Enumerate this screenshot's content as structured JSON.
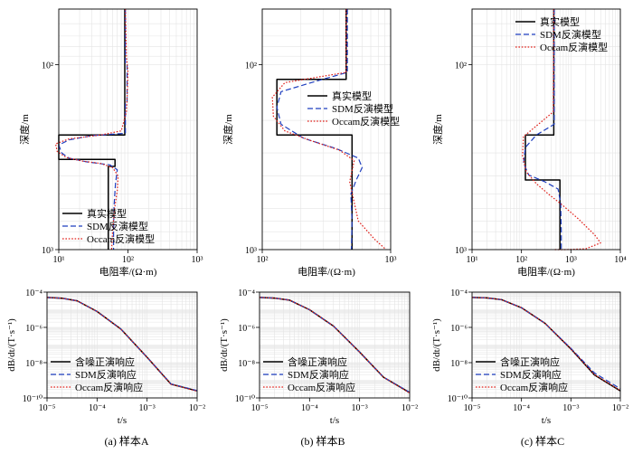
{
  "chart_data": [
    {
      "type": "line",
      "panel": "A-model",
      "xlabel": "电阻率/(Ω·m)",
      "ylabel": "深度/m",
      "xscale": "log",
      "yscale": "log",
      "y_inverted": true,
      "xlim": [
        10,
        1000
      ],
      "ylim": [
        1000,
        50
      ],
      "x_ticks": [
        "10¹",
        "10²",
        "10³"
      ],
      "y_ticks": [
        "10²",
        "10³"
      ],
      "grid": true,
      "legend": "bottom-left",
      "series": [
        {
          "name": "真实模型",
          "color": "#000000",
          "dash": "solid",
          "x": [
            90,
            90,
            10,
            10,
            65,
            65,
            52,
            52
          ],
          "y": [
            50,
            240,
            240,
            325,
            325,
            355,
            355,
            1000
          ]
        },
        {
          "name": "SDM反演模型",
          "color": "#1f3fbf",
          "dash": "dashed",
          "x": [
            92,
            92,
            97,
            97,
            92,
            92,
            30,
            14,
            10,
            11,
            14,
            25,
            55,
            70,
            66,
            63,
            62,
            62
          ],
          "y": [
            50,
            100,
            100,
            160,
            160,
            235,
            242,
            255,
            272,
            300,
            320,
            335,
            348,
            370,
            440,
            580,
            800,
            1000
          ]
        },
        {
          "name": "Occam反演模型",
          "color": "#e0201a",
          "dash": "dotted",
          "x": [
            92,
            95,
            100,
            98,
            95,
            80,
            40,
            14,
            9,
            9.5,
            13,
            22,
            40,
            60,
            72,
            70,
            64,
            60,
            58
          ],
          "y": [
            50,
            90,
            110,
            140,
            180,
            228,
            240,
            252,
            268,
            295,
            318,
            332,
            342,
            360,
            400,
            480,
            600,
            800,
            1000
          ]
        }
      ]
    },
    {
      "type": "line",
      "panel": "B-model",
      "xlabel": "电阻率/(Ω·m)",
      "ylabel": "深度/m",
      "xscale": "log",
      "yscale": "log",
      "y_inverted": true,
      "xlim": [
        100,
        1000
      ],
      "ylim": [
        1000,
        50
      ],
      "x_ticks": [
        "10²",
        "10³"
      ],
      "y_ticks": [
        "10²",
        "10³"
      ],
      "grid": true,
      "legend": "top-right",
      "series": [
        {
          "name": "真实模型",
          "color": "#000000",
          "dash": "solid",
          "x": [
            450,
            450,
            130,
            130,
            500,
            500
          ],
          "y": [
            50,
            120,
            120,
            240,
            240,
            1000
          ]
        },
        {
          "name": "SDM反演模型",
          "color": "#1f3fbf",
          "dash": "dashed",
          "x": [
            460,
            460,
            240,
            140,
            130,
            140,
            210,
            380,
            560,
            600,
            540,
            490,
            500,
            495
          ],
          "y": [
            50,
            110,
            125,
            140,
            170,
            210,
            250,
            285,
            320,
            360,
            420,
            500,
            700,
            1000
          ]
        },
        {
          "name": "Occam反演模型",
          "color": "#e0201a",
          "dash": "dotted",
          "x": [
            450,
            450,
            150,
            120,
            122,
            150,
            230,
            400,
            520,
            480,
            560,
            750,
            920
          ],
          "y": [
            50,
            110,
            125,
            150,
            190,
            228,
            255,
            290,
            330,
            430,
            700,
            880,
            1000
          ]
        }
      ]
    },
    {
      "type": "line",
      "panel": "C-model",
      "xlabel": "电阻率/(Ω·m)",
      "ylabel": "深度/m",
      "xscale": "log",
      "yscale": "log",
      "y_inverted": true,
      "xlim": [
        10,
        10000
      ],
      "ylim": [
        1000,
        50
      ],
      "x_ticks": [
        "10¹",
        "10²",
        "10³",
        "10⁴"
      ],
      "y_ticks": [
        "10²",
        "10³"
      ],
      "grid": true,
      "legend": "top-right",
      "series": [
        {
          "name": "真实模型",
          "color": "#000000",
          "dash": "solid",
          "x": [
            450,
            450,
            120,
            120,
            600,
            600
          ],
          "y": [
            50,
            240,
            240,
            420,
            420,
            1000
          ]
        },
        {
          "name": "SDM反演模型",
          "color": "#1f3fbf",
          "dash": "dashed",
          "x": [
            460,
            460,
            200,
            120,
            110,
            140,
            300,
            550,
            620,
            640,
            640
          ],
          "y": [
            50,
            210,
            240,
            280,
            340,
            395,
            430,
            470,
            560,
            800,
            1000
          ]
        },
        {
          "name": "Occam反演模型",
          "color": "#e0201a",
          "dash": "dotted",
          "x": [
            450,
            440,
            110,
            105,
            125,
            200,
            350,
            700,
            1400,
            3000,
            4000,
            2000,
            800,
            460
          ],
          "y": [
            50,
            180,
            245,
            310,
            380,
            440,
            500,
            580,
            680,
            830,
            920,
            990,
            1000,
            1000
          ]
        }
      ]
    },
    {
      "type": "line",
      "panel": "A-response",
      "xlabel": "t/s",
      "ylabel": "dB/dt/(T·s⁻¹)",
      "xscale": "log",
      "yscale": "log",
      "xlim": [
        1e-05,
        0.01
      ],
      "ylim": [
        1e-10,
        0.0001
      ],
      "x_ticks": [
        "10⁻⁵",
        "10⁻⁴",
        "10⁻³",
        "10⁻²"
      ],
      "y_ticks": [
        "10⁻⁴",
        "10⁻⁶",
        "10⁻⁸",
        "10⁻¹⁰"
      ],
      "grid": true,
      "legend": "bottom-left",
      "series": [
        {
          "name": "含噪正演响应",
          "color": "#000000",
          "dash": "solid",
          "x": [
            1e-05,
            2e-05,
            4e-05,
            0.0001,
            0.0003,
            0.001,
            0.003,
            0.01
          ],
          "y": [
            5e-05,
            4.5e-05,
            3.2e-05,
            8e-06,
            8e-07,
            2e-08,
            6e-10,
            2.5e-10
          ]
        },
        {
          "name": "SDM反演响应",
          "color": "#1f3fbf",
          "dash": "dashed",
          "x": [
            1e-05,
            2e-05,
            4e-05,
            0.0001,
            0.0003,
            0.001,
            0.003,
            0.01
          ],
          "y": [
            5e-05,
            4.5e-05,
            3.2e-05,
            8e-06,
            8e-07,
            2e-08,
            6.2e-10,
            2.6e-10
          ]
        },
        {
          "name": "Occam反演响应",
          "color": "#e0201a",
          "dash": "dotted",
          "x": [
            1e-05,
            2e-05,
            4e-05,
            0.0001,
            0.0003,
            0.001,
            0.003,
            0.01
          ],
          "y": [
            5e-05,
            4.5e-05,
            3.2e-05,
            8e-06,
            8e-07,
            2e-08,
            6e-10,
            2.4e-10
          ]
        }
      ]
    },
    {
      "type": "line",
      "panel": "B-response",
      "xlabel": "t/s",
      "ylabel": "dB/dt/(T·s⁻¹)",
      "xscale": "log",
      "yscale": "log",
      "xlim": [
        1e-05,
        0.01
      ],
      "ylim": [
        1e-10,
        0.0001
      ],
      "x_ticks": [
        "10⁻⁵",
        "10⁻⁴",
        "10⁻³",
        "10⁻²"
      ],
      "y_ticks": [
        "10⁻⁴",
        "10⁻⁶",
        "10⁻⁸",
        "10⁻¹⁰"
      ],
      "grid": true,
      "legend": "bottom-left",
      "series": [
        {
          "name": "含噪正演响应",
          "color": "#000000",
          "dash": "solid",
          "x": [
            1e-05,
            2e-05,
            4e-05,
            0.0001,
            0.0003,
            0.001,
            0.003,
            0.01
          ],
          "y": [
            5e-05,
            4.6e-05,
            3.5e-05,
            1e-05,
            1.2e-06,
            4e-08,
            1.5e-09,
            2e-10
          ]
        },
        {
          "name": "SDM反演响应",
          "color": "#1f3fbf",
          "dash": "dashed",
          "x": [
            1e-05,
            2e-05,
            4e-05,
            0.0001,
            0.0003,
            0.001,
            0.003,
            0.01
          ],
          "y": [
            5e-05,
            4.6e-05,
            3.5e-05,
            1e-05,
            1.2e-06,
            4e-08,
            1.5e-09,
            2.1e-10
          ]
        },
        {
          "name": "Occam反演响应",
          "color": "#e0201a",
          "dash": "dotted",
          "x": [
            1e-05,
            2e-05,
            4e-05,
            0.0001,
            0.0003,
            0.001,
            0.003,
            0.01
          ],
          "y": [
            5e-05,
            4.6e-05,
            3.5e-05,
            1e-05,
            1.2e-06,
            4e-08,
            1.5e-09,
            1.9e-10
          ]
        }
      ]
    },
    {
      "type": "line",
      "panel": "C-response",
      "xlabel": "t/s",
      "ylabel": "dB/dt/(T·s⁻¹)",
      "xscale": "log",
      "yscale": "log",
      "xlim": [
        1e-05,
        0.01
      ],
      "ylim": [
        1e-10,
        0.0001
      ],
      "x_ticks": [
        "10⁻⁵",
        "10⁻⁴",
        "10⁻³",
        "10⁻²"
      ],
      "y_ticks": [
        "10⁻⁴",
        "10⁻⁶",
        "10⁻⁸",
        "10⁻¹⁰"
      ],
      "grid": true,
      "legend": "bottom-left",
      "series": [
        {
          "name": "含噪正演响应",
          "color": "#000000",
          "dash": "solid",
          "x": [
            1e-05,
            2e-05,
            4e-05,
            0.0001,
            0.0003,
            0.001,
            0.003,
            0.01
          ],
          "y": [
            5e-05,
            4.7e-05,
            3.7e-05,
            1.3e-05,
            1.7e-06,
            6e-08,
            2e-09,
            2.5e-10
          ]
        },
        {
          "name": "SDM反演响应",
          "color": "#1f3fbf",
          "dash": "dashed",
          "x": [
            1e-05,
            2e-05,
            4e-05,
            0.0001,
            0.0003,
            0.001,
            0.003,
            0.01
          ],
          "y": [
            5e-05,
            4.7e-05,
            3.7e-05,
            1.3e-05,
            1.7e-06,
            6.5e-08,
            2.6e-09,
            3.3e-10
          ]
        },
        {
          "name": "Occam反演响应",
          "color": "#e0201a",
          "dash": "dotted",
          "x": [
            1e-05,
            2e-05,
            4e-05,
            0.0001,
            0.0003,
            0.001,
            0.003,
            0.01
          ],
          "y": [
            5e-05,
            4.7e-05,
            3.7e-05,
            1.3e-05,
            1.7e-06,
            6e-08,
            2.1e-09,
            2.6e-10
          ]
        }
      ]
    }
  ],
  "captions": [
    "(a) 样本A",
    "(b) 样本B",
    "(c) 样本C"
  ]
}
